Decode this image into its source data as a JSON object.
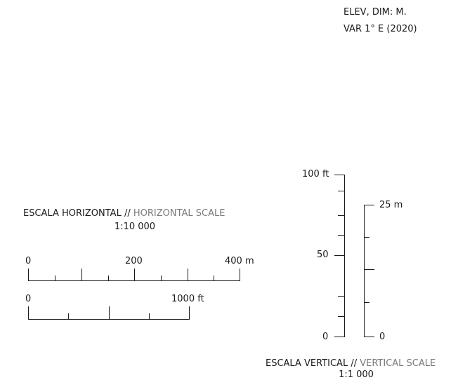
{
  "notes": {
    "line1": "ELEV, DIM: M.",
    "line2": "VAR 1° E (2020)"
  },
  "horizontal_scale": {
    "title_main": "ESCALA HORIZONTAL //",
    "title_english": "HORIZONTAL SCALE",
    "ratio": "1:10 000",
    "meter_bar": {
      "labels": [
        "0",
        "200",
        "400 m"
      ]
    },
    "feet_bar": {
      "labels": [
        "0",
        "1000 ft"
      ]
    }
  },
  "vertical_scale": {
    "title_main": "ESCALA VERTICAL //",
    "title_english": "VERTICAL SCALE",
    "ratio": "1:1 000",
    "feet_bar": {
      "labels": [
        "100 ft",
        "50",
        "0"
      ]
    },
    "meter_bar": {
      "labels": [
        "25 m",
        "0"
      ]
    }
  }
}
